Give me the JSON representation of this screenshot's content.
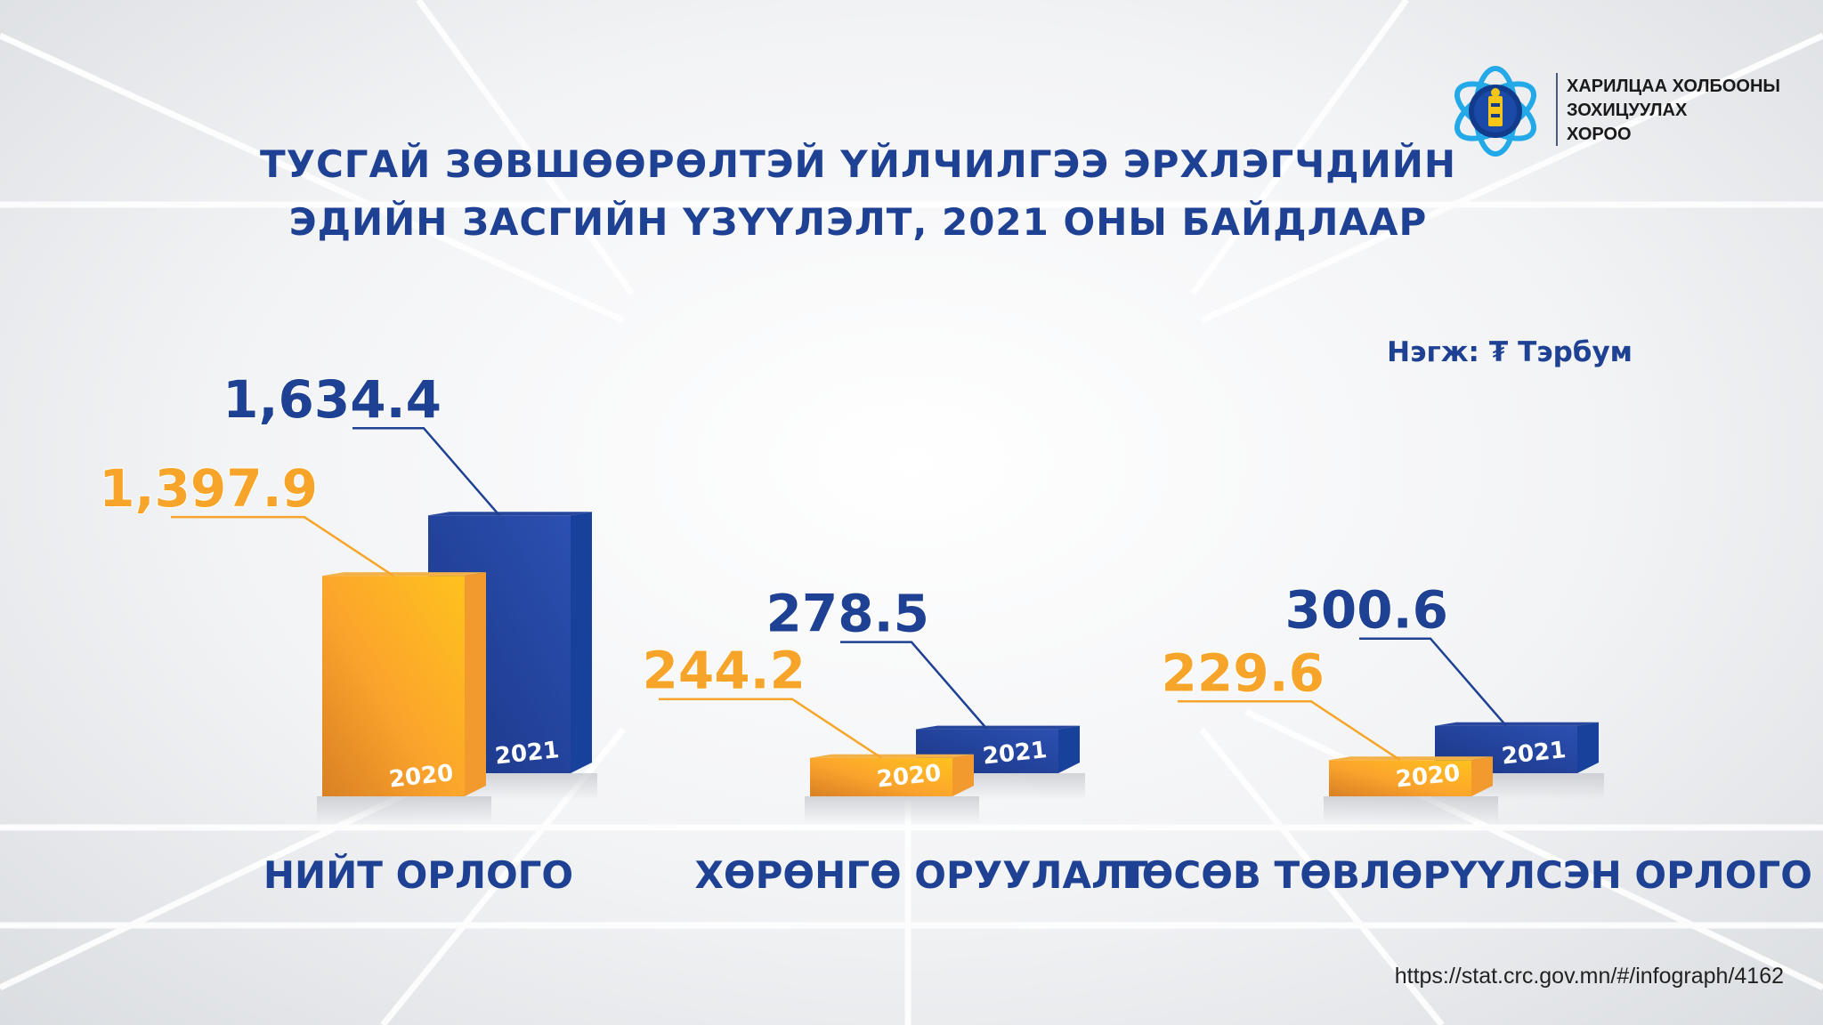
{
  "title": {
    "line1": "ТУСГАЙ ЗӨВШӨӨРӨЛТЭЙ ҮЙЛЧИЛГЭЭ ЭРХЛЭГЧДИЙН",
    "line2": "ЭДИЙН ЗАСГИЙН ҮЗҮҮЛЭЛТ, 2021 ОНЫ БАЙДЛААР"
  },
  "unit": "Нэгж: ₮ Тэрбум",
  "organization": {
    "line1": "ХАРИЛЦАА ХОЛБООНЫ",
    "line2": "ЗОХИЦУУЛАХ",
    "line3": "ХОРОО"
  },
  "source": "https://stat.crc.gov.mn/#/infograph/4162",
  "colors": {
    "title": "#1e4193",
    "series_2020": "#f7a52a",
    "series_2021": "#1e4193"
  },
  "chart_data": {
    "type": "bar",
    "categories": [
      "НИЙТ ОРЛОГО",
      "ХӨРӨНГӨ ОРУУЛАЛТ",
      "ТӨСӨВ ТӨВЛӨРҮҮЛСЭН ОРЛОГО"
    ],
    "series": [
      {
        "name": "2020",
        "values": [
          1397.9,
          244.2,
          229.6
        ],
        "labels": [
          "1,397.9",
          "244.2",
          "229.6"
        ]
      },
      {
        "name": "2021",
        "values": [
          1634.4,
          278.5,
          300.6
        ],
        "labels": [
          "1,634.4",
          "278.5",
          "300.6"
        ]
      }
    ]
  }
}
